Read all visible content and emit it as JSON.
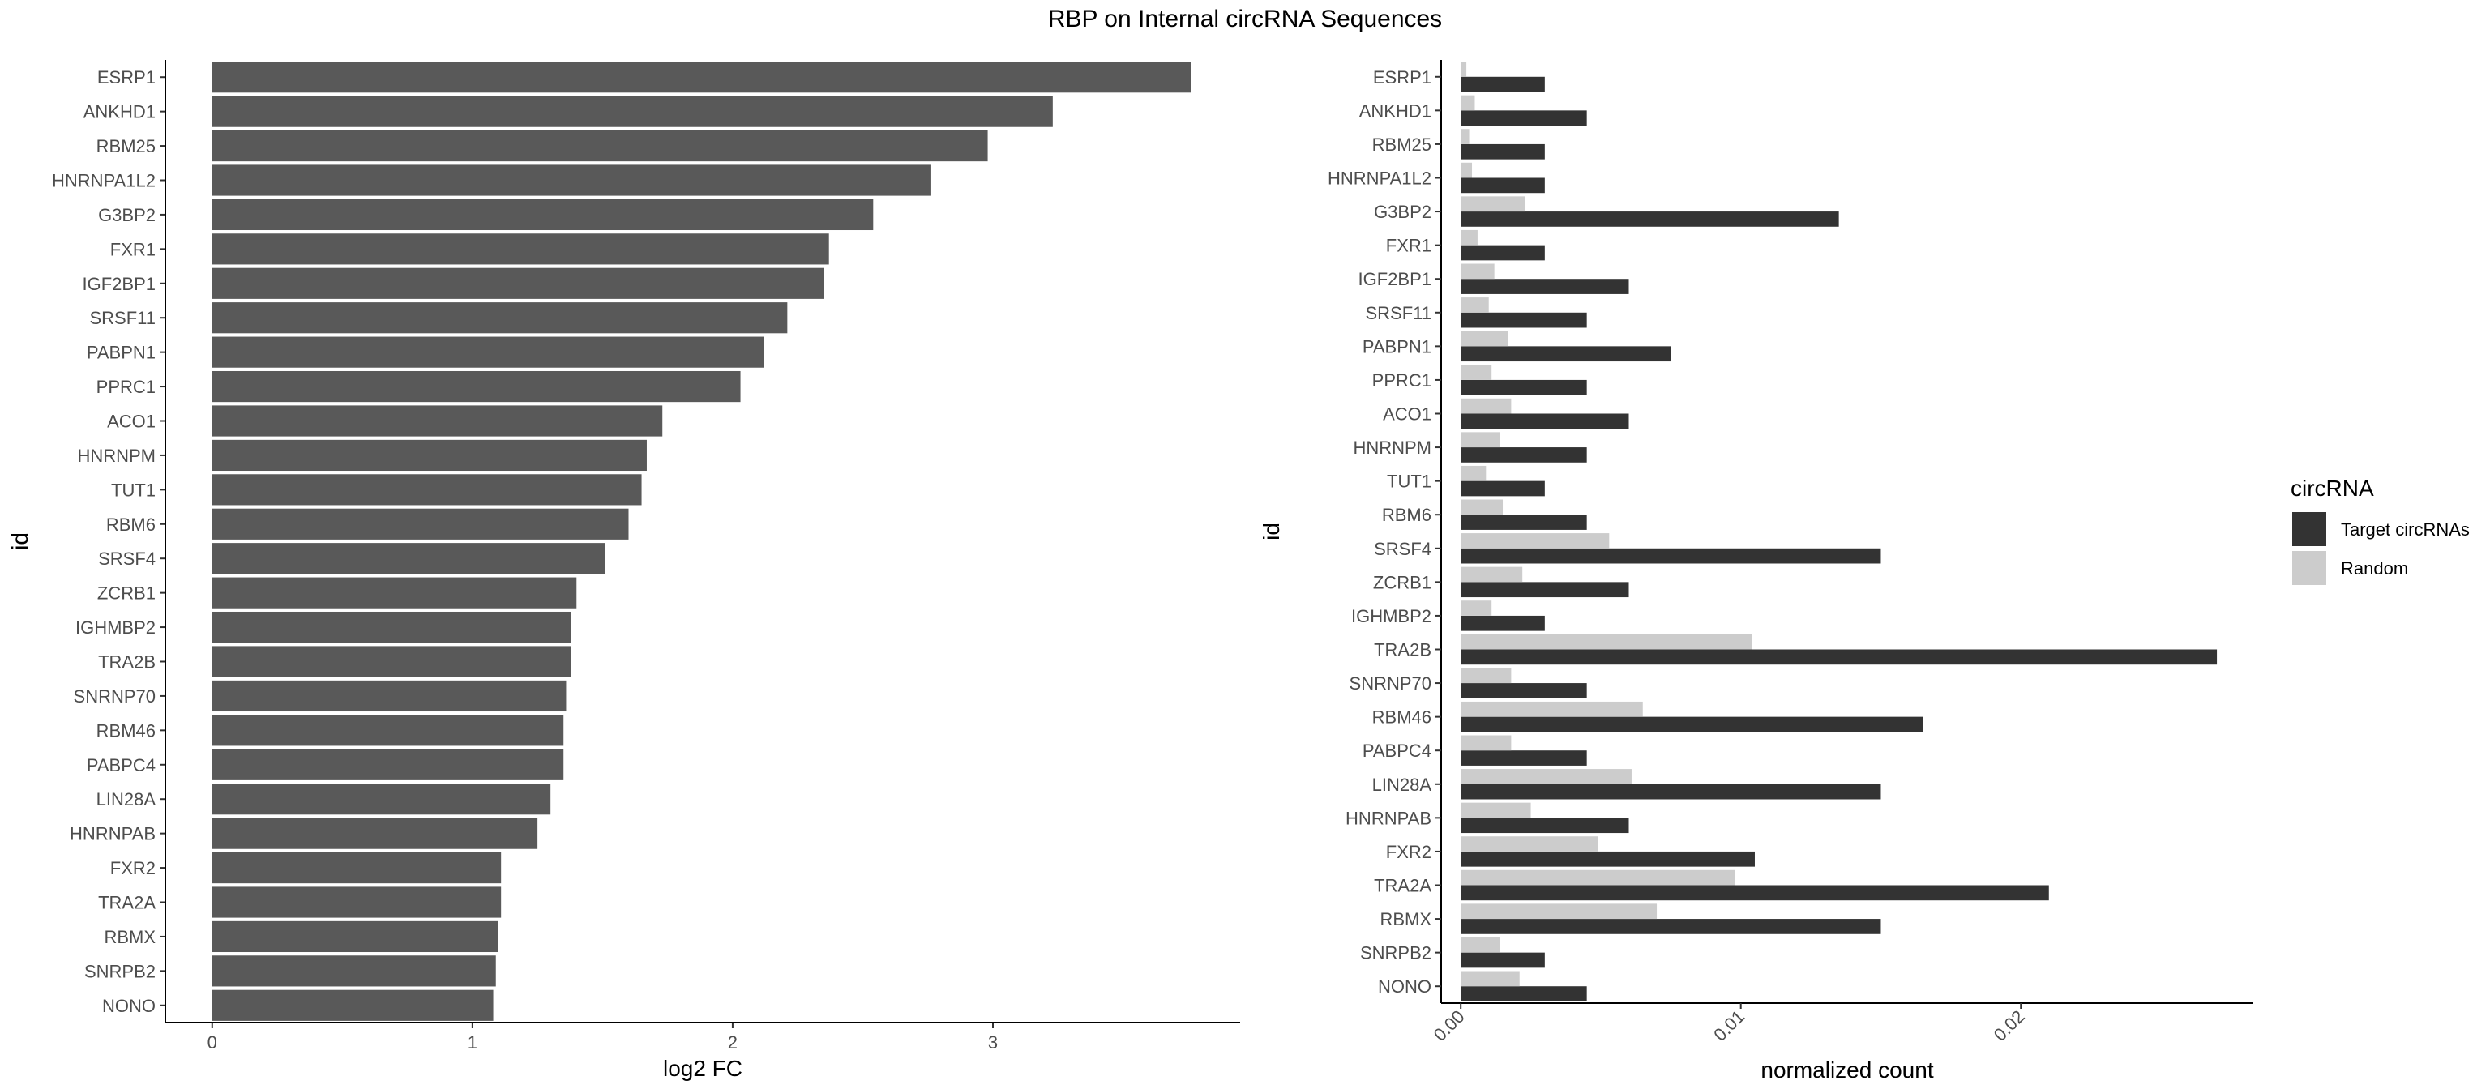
{
  "title": "RBP on Internal circRNA Sequences",
  "chart_data": [
    {
      "type": "bar",
      "orientation": "horizontal",
      "ylabel": "id",
      "xlabel": "log2 FC",
      "xlim": [
        -0.18,
        3.95
      ],
      "xticks": [
        0,
        1,
        2,
        3
      ],
      "xtick_labels": [
        "0",
        "1",
        "2",
        "3"
      ],
      "grid": false,
      "bar_color": "#595959",
      "categories": [
        "ESRP1",
        "ANKHD1",
        "RBM25",
        "HNRNPA1L2",
        "G3BP2",
        "FXR1",
        "IGF2BP1",
        "SRSF11",
        "PABPN1",
        "PPRC1",
        "ACO1",
        "HNRNPM",
        "TUT1",
        "RBM6",
        "SRSF4",
        "ZCRB1",
        "IGHMBP2",
        "TRA2B",
        "SNRNP70",
        "RBM46",
        "PABPC4",
        "LIN28A",
        "HNRNPAB",
        "FXR2",
        "TRA2A",
        "RBMX",
        "SNRPB2",
        "NONO"
      ],
      "values": [
        3.76,
        3.23,
        2.98,
        2.76,
        2.54,
        2.37,
        2.35,
        2.21,
        2.12,
        2.03,
        1.73,
        1.67,
        1.65,
        1.6,
        1.51,
        1.4,
        1.38,
        1.38,
        1.36,
        1.35,
        1.35,
        1.3,
        1.25,
        1.11,
        1.11,
        1.1,
        1.09,
        1.08
      ]
    },
    {
      "type": "bar",
      "orientation": "horizontal",
      "grouped": true,
      "ylabel": "id",
      "xlabel": "normalized count",
      "xlim": [
        -0.0007,
        0.0283
      ],
      "xticks": [
        0,
        0.01,
        0.02
      ],
      "xtick_labels": [
        "0.00",
        "0.01",
        "0.02"
      ],
      "xtick_rotation": -45,
      "grid": false,
      "legend_title": "circRNA",
      "legend_position": "right",
      "categories": [
        "ESRP1",
        "ANKHD1",
        "RBM25",
        "HNRNPA1L2",
        "G3BP2",
        "FXR1",
        "IGF2BP1",
        "SRSF11",
        "PABPN1",
        "PPRC1",
        "ACO1",
        "HNRNPM",
        "TUT1",
        "RBM6",
        "SRSF4",
        "ZCRB1",
        "IGHMBP2",
        "TRA2B",
        "SNRNP70",
        "RBM46",
        "PABPC4",
        "LIN28A",
        "HNRNPAB",
        "FXR2",
        "TRA2A",
        "RBMX",
        "SNRPB2",
        "NONO"
      ],
      "series": [
        {
          "name": "Target circRNAs",
          "color": "#333333",
          "values": [
            0.003,
            0.0045,
            0.003,
            0.003,
            0.0135,
            0.003,
            0.006,
            0.0045,
            0.0075,
            0.0045,
            0.006,
            0.0045,
            0.003,
            0.0045,
            0.015,
            0.006,
            0.003,
            0.027,
            0.0045,
            0.0165,
            0.0045,
            0.015,
            0.006,
            0.0105,
            0.021,
            0.015,
            0.003,
            0.0045
          ]
        },
        {
          "name": "Random",
          "color": "#cccccc",
          "values": [
            0.0002,
            0.0005,
            0.0003,
            0.0004,
            0.0023,
            0.0006,
            0.0012,
            0.001,
            0.0017,
            0.0011,
            0.0018,
            0.0014,
            0.0009,
            0.0015,
            0.0053,
            0.0022,
            0.0011,
            0.0104,
            0.0018,
            0.0065,
            0.0018,
            0.0061,
            0.0025,
            0.0049,
            0.0098,
            0.007,
            0.0014,
            0.0021
          ]
        }
      ]
    }
  ]
}
